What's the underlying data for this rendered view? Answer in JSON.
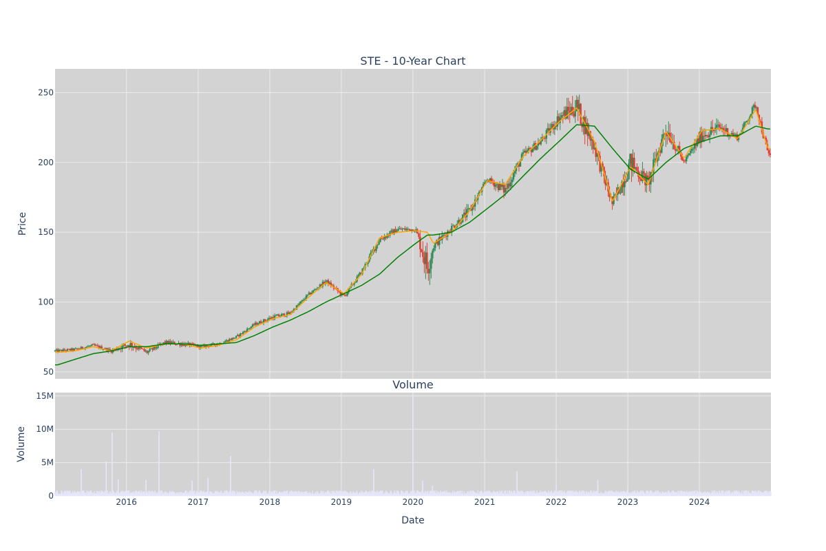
{
  "colors": {
    "plot_bg": "#d3d3d3",
    "grid": "#ececec",
    "increasing": "#2e8b57",
    "decreasing": "#e03c31",
    "ma_short": "#ffa500",
    "ma_long": "#008000",
    "volume": "#e6e6fa"
  },
  "chart_data": [
    {
      "type": "candlestick",
      "title": "STE - 10-Year Chart",
      "xlabel": "",
      "ylabel": "Price",
      "ylim": [
        45,
        267
      ],
      "yticks": [
        50,
        100,
        150,
        200,
        250
      ],
      "xlim": [
        "2015-01-02",
        "2024-12-31"
      ],
      "grid": true,
      "x": [
        "2015-01",
        "2015-04",
        "2015-07",
        "2015-10",
        "2016-01",
        "2016-04",
        "2016-07",
        "2016-10",
        "2017-01",
        "2017-04",
        "2017-07",
        "2017-10",
        "2018-01",
        "2018-04",
        "2018-07",
        "2018-10",
        "2019-01",
        "2019-04",
        "2019-07",
        "2019-10",
        "2020-01",
        "2020-03",
        "2020-04",
        "2020-07",
        "2020-10",
        "2021-01",
        "2021-04",
        "2021-07",
        "2021-10",
        "2022-01",
        "2022-04",
        "2022-07",
        "2022-10",
        "2023-01",
        "2023-04",
        "2023-07",
        "2023-10",
        "2024-01",
        "2024-04",
        "2024-07",
        "2024-10",
        "2024-12"
      ],
      "series": [
        {
          "type": "close",
          "values": [
            65,
            66,
            69,
            65,
            70,
            64,
            71,
            70,
            68,
            70,
            75,
            84,
            89,
            92,
            105,
            115,
            104,
            122,
            145,
            152,
            152,
            125,
            140,
            153,
            165,
            188,
            180,
            205,
            215,
            232,
            240,
            211,
            170,
            200,
            185,
            225,
            200,
            220,
            225,
            218,
            242,
            206
          ]
        },
        {
          "type": "high",
          "values": [
            68,
            69,
            71,
            68,
            77,
            70,
            74,
            73,
            71,
            73,
            78,
            87,
            93,
            95,
            108,
            118,
            108,
            126,
            155,
            156,
            157,
            168,
            152,
            160,
            180,
            192,
            196,
            215,
            226,
            246,
            256,
            226,
            182,
            222,
            200,
            254,
            205,
            238,
            236,
            224,
            248,
            220
          ]
        },
        {
          "type": "low",
          "values": [
            62,
            63,
            65,
            61,
            62,
            62,
            66,
            64,
            65,
            67,
            72,
            81,
            84,
            88,
            101,
            110,
            99,
            118,
            140,
            146,
            148,
            106,
            136,
            146,
            160,
            183,
            172,
            198,
            209,
            222,
            213,
            194,
            160,
            178,
            173,
            210,
            196,
            211,
            212,
            212,
            232,
            202
          ]
        },
        {
          "type": "line",
          "values": [
            64,
            65,
            68,
            65,
            72,
            67,
            70,
            70,
            67,
            69,
            73,
            82,
            88,
            91,
            103,
            114,
            106,
            120,
            146,
            150,
            151,
            150,
            142,
            150,
            165,
            187,
            184,
            204,
            216,
            229,
            239,
            215,
            172,
            197,
            184,
            222,
            203,
            223,
            224,
            217,
            238,
            210
          ]
        },
        {
          "type": "line",
          "values": [
            55,
            59,
            63,
            65,
            68,
            68,
            70,
            70,
            69,
            70,
            71,
            76,
            82,
            87,
            93,
            100,
            106,
            112,
            120,
            132,
            142,
            148,
            148,
            150,
            157,
            167,
            177,
            190,
            203,
            215,
            227,
            226,
            210,
            195,
            188,
            200,
            210,
            215,
            219,
            219,
            226,
            224
          ]
        }
      ]
    },
    {
      "type": "bar",
      "title": "Volume",
      "xlabel": "Date",
      "ylabel": "Volume",
      "ylim": [
        0,
        15500000
      ],
      "yticks": [
        0,
        5000000,
        10000000,
        15000000
      ],
      "ytick_labels": [
        "0",
        "5M",
        "10M",
        "15M"
      ],
      "xticks": [
        "2016-01-01",
        "2017-01-01",
        "2018-01-01",
        "2019-01-01",
        "2020-01-01",
        "2021-01-01",
        "2022-01-01",
        "2023-01-01",
        "2024-01-01"
      ],
      "xtick_labels": [
        "2016",
        "2017",
        "2018",
        "2019",
        "2020",
        "2021",
        "2022",
        "2023",
        "2024"
      ],
      "baseline": 500000,
      "spikes": [
        {
          "x": "2015-05-15",
          "value": 4000000
        },
        {
          "x": "2015-09-20",
          "value": 5200000
        },
        {
          "x": "2015-10-20",
          "value": 9500000
        },
        {
          "x": "2015-11-20",
          "value": 2500000
        },
        {
          "x": "2016-04-10",
          "value": 2400000
        },
        {
          "x": "2016-06-15",
          "value": 9700000
        },
        {
          "x": "2016-12-01",
          "value": 2300000
        },
        {
          "x": "2017-02-20",
          "value": 2700000
        },
        {
          "x": "2017-06-15",
          "value": 6000000
        },
        {
          "x": "2019-06-15",
          "value": 4000000
        },
        {
          "x": "2020-01-01",
          "value": 15000000
        },
        {
          "x": "2020-02-20",
          "value": 2300000
        },
        {
          "x": "2020-04-10",
          "value": 1500000
        },
        {
          "x": "2021-06-15",
          "value": 3700000
        },
        {
          "x": "2022-01-01",
          "value": 1300000
        },
        {
          "x": "2022-08-01",
          "value": 2400000
        },
        {
          "x": "2023-01-01",
          "value": 1100000
        }
      ]
    }
  ]
}
